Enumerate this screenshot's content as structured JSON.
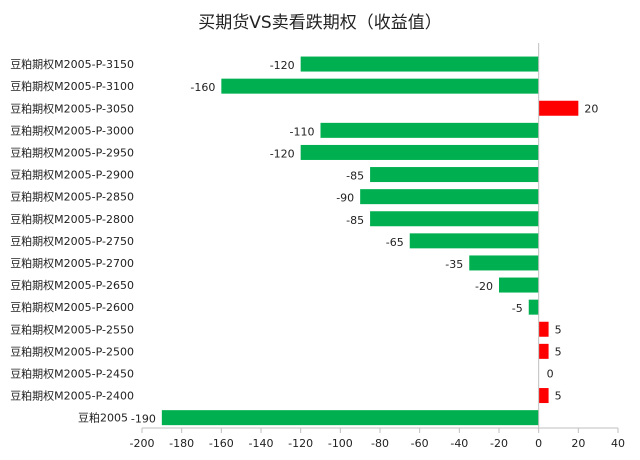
{
  "chart_data": {
    "type": "bar",
    "orientation": "horizontal",
    "title": "买期货VS卖看跌期权（收益值）",
    "xlabel": "",
    "ylabel": "",
    "xlim": [
      -200,
      40
    ],
    "xticks": [
      -200,
      -180,
      -160,
      -140,
      -120,
      -100,
      -80,
      -60,
      -40,
      -20,
      0,
      20,
      40
    ],
    "grid": false,
    "legend": "none",
    "categories": [
      "豆粕期权M2005-P-3150",
      "豆粕期权M2005-P-3100",
      "豆粕期权M2005-P-3050",
      "豆粕期权M2005-P-3000",
      "豆粕期权M2005-P-2950",
      "豆粕期权M2005-P-2900",
      "豆粕期权M2005-P-2850",
      "豆粕期权M2005-P-2800",
      "豆粕期权M2005-P-2750",
      "豆粕期权M2005-P-2700",
      "豆粕期权M2005-P-2650",
      "豆粕期权M2005-P-2600",
      "豆粕期权M2005-P-2550",
      "豆粕期权M2005-P-2500",
      "豆粕期权M2005-P-2450",
      "豆粕期权M2005-P-2400",
      "豆粕2005"
    ],
    "values": [
      -120,
      -160,
      20,
      -110,
      -120,
      -85,
      -90,
      -85,
      -65,
      -35,
      -20,
      -5,
      5,
      5,
      0,
      5,
      -190
    ],
    "colors": {
      "negative": "#00b050",
      "positive": "#ff0000"
    }
  }
}
